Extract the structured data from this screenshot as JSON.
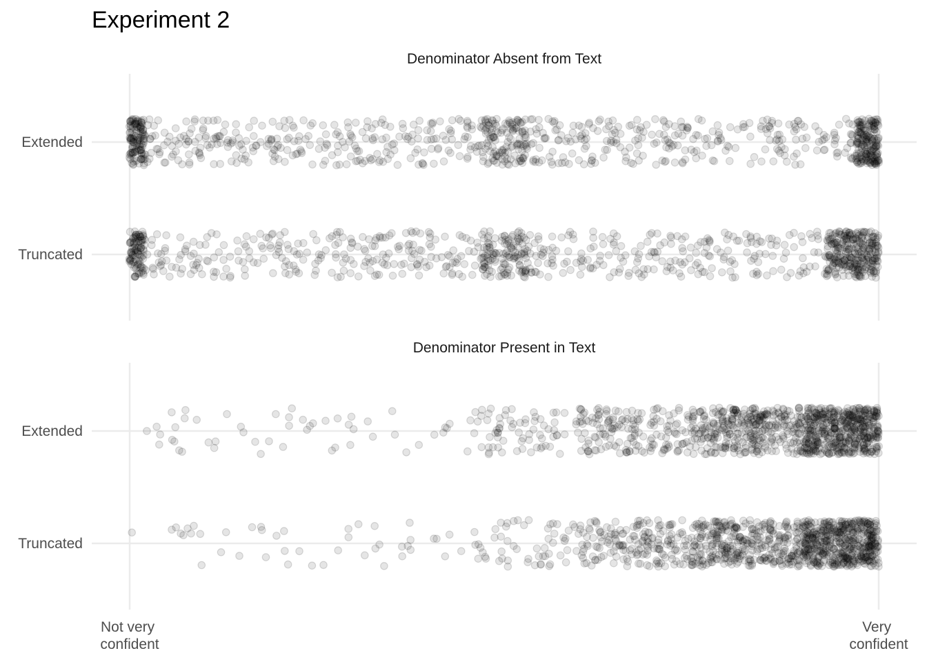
{
  "title": "Experiment 2",
  "chart_data": {
    "type": "scatter",
    "jitter": true,
    "point_color": "#000000",
    "point_alpha": 0.1,
    "grid": true,
    "x_ticks": [
      "Not very\nconfident",
      "Very\nconfident"
    ],
    "xlim": [
      0,
      100
    ],
    "categories": [
      "Truncated",
      "Extended"
    ],
    "panels": [
      {
        "name": "Denominator Absent from Text",
        "series": [
          {
            "name": "Extended",
            "n": 1000,
            "distribution": [
              {
                "x0": 0,
                "x1": 2,
                "w": 0.12
              },
              {
                "x0": 0,
                "x1": 100,
                "w": 0.62
              },
              {
                "x0": 47,
                "x1": 53,
                "w": 0.1
              },
              {
                "x0": 97,
                "x1": 100,
                "w": 0.16
              }
            ]
          },
          {
            "name": "Truncated",
            "n": 1000,
            "distribution": [
              {
                "x0": 0,
                "x1": 2,
                "w": 0.1
              },
              {
                "x0": 0,
                "x1": 100,
                "w": 0.58
              },
              {
                "x0": 47,
                "x1": 53,
                "w": 0.09
              },
              {
                "x0": 93,
                "x1": 100,
                "w": 0.23
              }
            ]
          }
        ]
      },
      {
        "name": "Denominator Present in Text",
        "series": [
          {
            "name": "Extended",
            "n": 1150,
            "distribution": [
              {
                "x0": 0,
                "x1": 45,
                "w": 0.04
              },
              {
                "x0": 45,
                "x1": 60,
                "w": 0.06
              },
              {
                "x0": 60,
                "x1": 75,
                "w": 0.15
              },
              {
                "x0": 75,
                "x1": 90,
                "w": 0.3
              },
              {
                "x0": 90,
                "x1": 100,
                "w": 0.45
              }
            ]
          },
          {
            "name": "Truncated",
            "n": 1150,
            "distribution": [
              {
                "x0": 0,
                "x1": 45,
                "w": 0.035
              },
              {
                "x0": 45,
                "x1": 60,
                "w": 0.055
              },
              {
                "x0": 60,
                "x1": 75,
                "w": 0.15
              },
              {
                "x0": 75,
                "x1": 90,
                "w": 0.32
              },
              {
                "x0": 90,
                "x1": 100,
                "w": 0.44
              }
            ]
          }
        ]
      }
    ]
  }
}
